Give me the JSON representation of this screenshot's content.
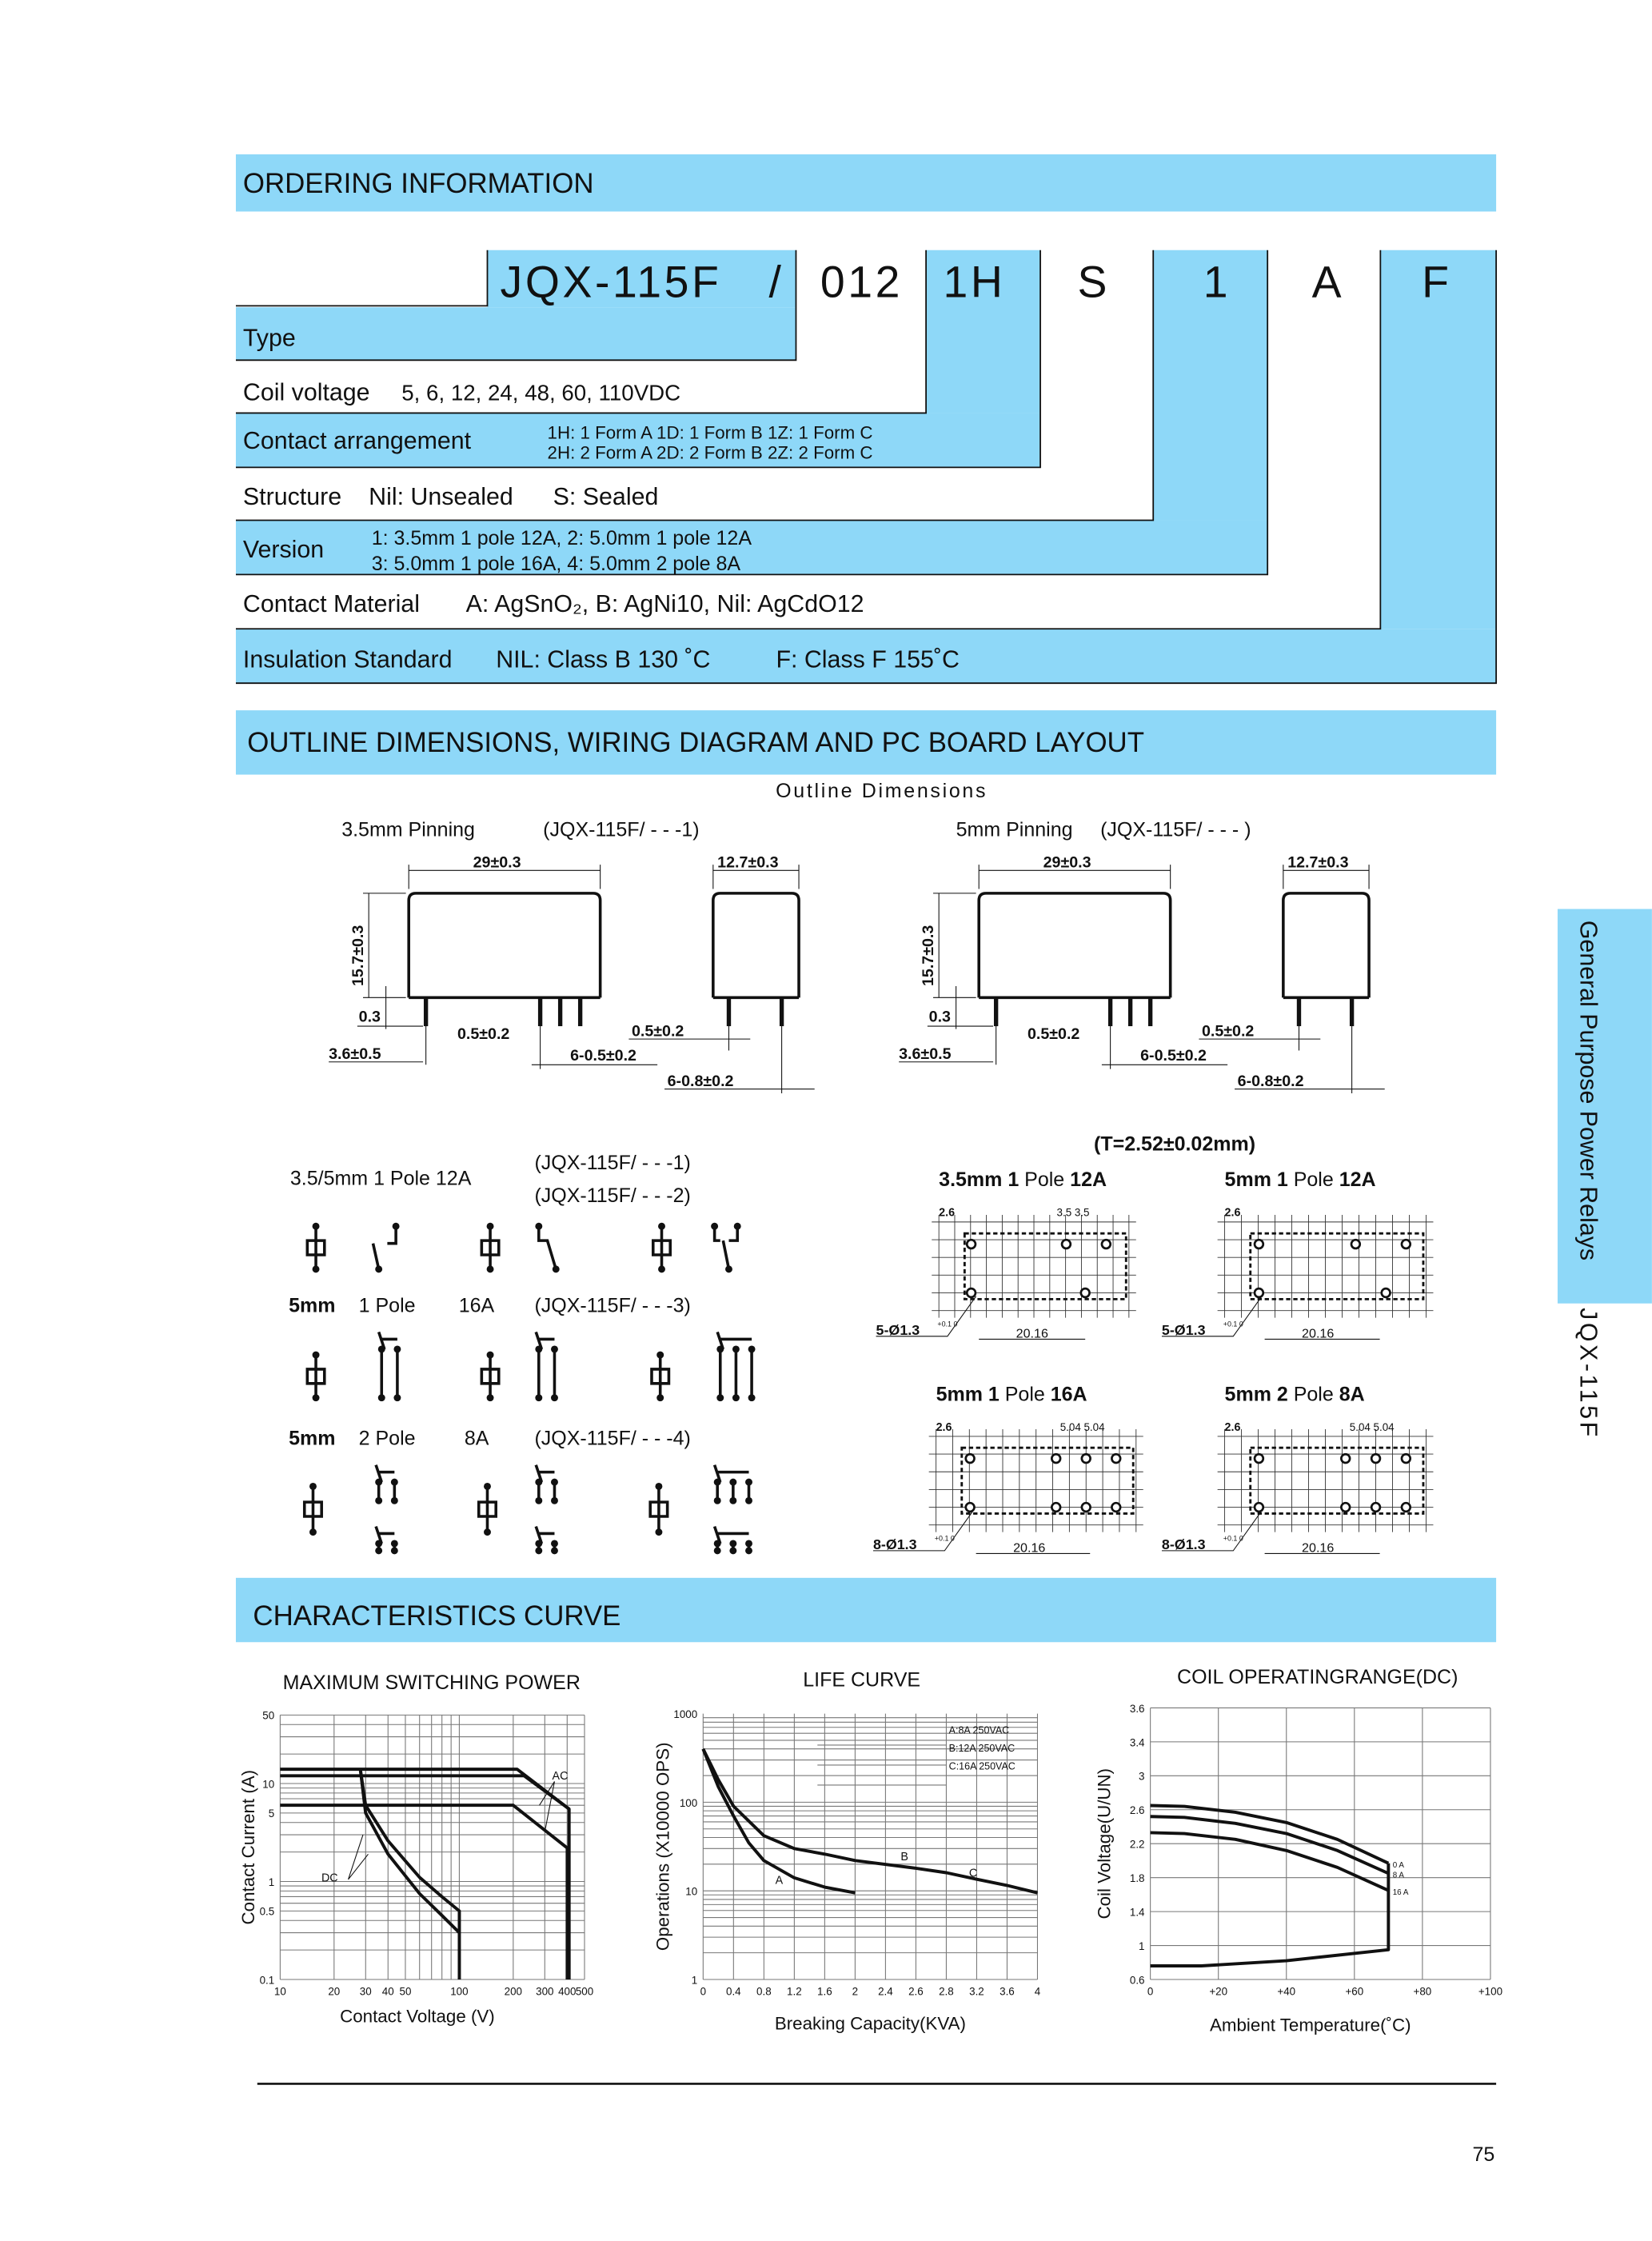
{
  "colors": {
    "accent_blue": "#8ed8f8",
    "text": "#111111"
  },
  "ordering": {
    "header": "ORDERING INFORMATION",
    "code": {
      "type": "JQX-115F",
      "slash": "/",
      "coil": "012",
      "contact": "1H",
      "structure": "S",
      "version": "1",
      "material": "A",
      "insulation": "F"
    },
    "rows": {
      "type": "Type",
      "coil_label": "Coil voltage",
      "coil_values": "5, 6, 12, 24, 48, 60, 110VDC",
      "contact_label": "Contact arrangement",
      "contact_line1": "1H: 1 Form A  1D: 1 Form B  1Z: 1 Form C",
      "contact_line2": "2H: 2 Form A  2D: 2 Form B  2Z: 2 Form C",
      "structure_label": "Structure",
      "structure_nil": "Nil: Unsealed",
      "structure_s": "S: Sealed",
      "version_label": "Version",
      "version_line1": "1: 3.5mm 1 pole 12A,  2: 5.0mm 1 pole  12A",
      "version_line2": "3: 5.0mm 1 pole  16A,  4: 5.0mm  2 pole  8A",
      "material_label": "Contact Material",
      "material_values": "A: AgSnO₂,  B: AgNi10,  Nil:  AgCdO12",
      "insulation_label": "Insulation Standard",
      "insulation_nil": "NIL:  Class B 130  ˚C",
      "insulation_f": "F:  Class F 155˚C"
    }
  },
  "outline": {
    "header": "OUTLINE DIMENSIONS, WIRING DIAGRAM AND PC BOARD LAYOUT",
    "subtitle": "Outline Dimensions",
    "left_title": "3.5mm  Pinning",
    "left_code": "(JQX-115F/   - - -1)",
    "right_title": "5mm Pinning",
    "right_code": "(JQX-115F/   - - - )",
    "dims": {
      "width": "29±0.3",
      "depth": "12.7±0.3",
      "height": "15.7±0.3",
      "standoff": "0.3",
      "pin_w": "0.5±0.2",
      "pin_len": "3.6±0.5",
      "pin6": "6-0.5±0.2",
      "pin_side": "0.5±0.2",
      "pin8": "6-0.8±0.2"
    }
  },
  "wiring": {
    "row1": {
      "label": "3.5/5mm  1 Pole  12A",
      "code1": "(JQX-115F/    - - -1)",
      "code2": "(JQX-115F/    - - -2)"
    },
    "row2": {
      "size": "5mm",
      "pole": "1 Pole",
      "amps": "16A",
      "code": "(JQX-115F/    - - -3)"
    },
    "row3": {
      "size": "5mm",
      "pole": "2 Pole",
      "amps": "8A",
      "code": "(JQX-115F/    - - -4)"
    }
  },
  "pcb": {
    "thickness": "(T=2.52±0.02mm)",
    "layouts": [
      {
        "title_a": "3.5mm 1",
        "title_b": "Pole",
        "title_c": "12A",
        "holes": "5-Ø1.3",
        "span": "20.16",
        "edge": "2.6",
        "pitch": "3.5 3.5"
      },
      {
        "title_a": "5mm 1",
        "title_b": "Pole",
        "title_c": "12A",
        "holes": "5-Ø1.3",
        "span": "20.16",
        "edge": "2.6",
        "pitch": ""
      },
      {
        "title_a": "5mm 1",
        "title_b": "Pole",
        "title_c": "16A",
        "holes": "8-Ø1.3",
        "span": "20.16",
        "edge": "2.6",
        "pitch": "5.04 5.04"
      },
      {
        "title_a": "5mm 2",
        "title_b": "Pole",
        "title_c": "8A",
        "holes": "8-Ø1.3",
        "span": "20.16",
        "edge": "2.6",
        "pitch": "5.04 5.04"
      }
    ],
    "tol": "+0.1 0"
  },
  "characteristics": {
    "header": "CHARACTERISTICS  CURVE"
  },
  "chart_data": [
    {
      "type": "line",
      "title": "MAXIMUM SWITCHING POWER",
      "xlabel": "Contact Voltage (V)",
      "ylabel": "Contact Current (A)",
      "xscale": "log",
      "yscale": "log",
      "xlim": [
        10,
        500
      ],
      "ylim": [
        0.1,
        50
      ],
      "xticks": [
        10,
        20,
        30,
        40,
        50,
        100,
        200,
        300,
        400,
        500
      ],
      "yticks": [
        0.1,
        0.5,
        1,
        5,
        10,
        50
      ],
      "grid": true,
      "series": [
        {
          "values": [
            [
              10,
              14
            ],
            [
              210,
              14
            ],
            [
              410,
              5.5
            ],
            [
              410,
              0.1
            ]
          ]
        },
        {
          "values": [
            [
              10,
              12
            ],
            [
              230,
              12
            ],
            [
              410,
              5.5
            ]
          ]
        },
        {
          "values": [
            [
              10,
              6
            ],
            [
              200,
              6
            ],
            [
              400,
              2.2
            ],
            [
              400,
              0.1
            ]
          ]
        },
        {
          "values": [
            [
              28,
              14
            ],
            [
              30,
              6
            ],
            [
              40,
              2.6
            ],
            [
              60,
              1.1
            ],
            [
              80,
              0.7
            ],
            [
              100,
              0.5
            ],
            [
              100,
              0.1
            ]
          ]
        },
        {
          "values": [
            [
              28,
              14
            ],
            [
              30,
              5
            ],
            [
              40,
              1.9
            ],
            [
              60,
              0.75
            ],
            [
              80,
              0.45
            ],
            [
              100,
              0.3
            ]
          ]
        }
      ],
      "annotations": [
        {
          "text": "AC",
          "x": 330,
          "y": 11
        },
        {
          "text": "DC",
          "x": 17,
          "y": 1
        }
      ]
    },
    {
      "type": "line",
      "title": "LIFE CURVE",
      "xlabel": "Breaking Capacity(KVA)",
      "ylabel": "Operations (X10000 OPS)",
      "yscale": "log",
      "ylim": [
        1,
        1000
      ],
      "xticks": [
        0,
        0.4,
        0.8,
        1.2,
        1.6,
        2.0,
        2.4,
        2.6,
        2.8,
        3.2,
        3.6,
        4.0
      ],
      "yticks": [
        1,
        10,
        100,
        1000
      ],
      "grid": true,
      "legend": [
        "A:8A 250VAC",
        "B:12A 250VAC",
        "C:16A 250VAC"
      ],
      "legend_position": "top-right",
      "series": [
        {
          "name": "A",
          "values": [
            [
              0,
              400
            ],
            [
              0.2,
              150
            ],
            [
              0.4,
              70
            ],
            [
              0.6,
              35
            ],
            [
              0.8,
              22
            ],
            [
              1.2,
              14
            ],
            [
              1.6,
              11
            ],
            [
              2.0,
              9.5
            ]
          ]
        },
        {
          "name": "B",
          "values": [
            [
              0,
              400
            ],
            [
              0.2,
              180
            ],
            [
              0.4,
              90
            ],
            [
              0.8,
              42
            ],
            [
              1.2,
              30
            ],
            [
              1.6,
              26
            ],
            [
              2.0,
              22
            ],
            [
              2.6,
              18
            ],
            [
              2.8,
              16
            ],
            [
              3.2,
              13.5
            ],
            [
              3.6,
              11.5
            ],
            [
              4.0,
              9.5
            ]
          ]
        }
      ],
      "annotations": [
        {
          "text": "A",
          "x": 0.95,
          "y": 12
        },
        {
          "text": "B",
          "x": 2.5,
          "y": 22
        },
        {
          "text": "C",
          "x": 3.1,
          "y": 14.5
        }
      ]
    },
    {
      "type": "line",
      "title": "COIL OPERATINGRANGE(DC)",
      "xlabel": "Ambient Temperature(˚C)",
      "ylabel": "Coil Voltage(U/UN)",
      "xlim": [
        0,
        100
      ],
      "ylim": [
        0.6,
        3.6
      ],
      "xticks": [
        "0",
        "+20",
        "+40",
        "+60",
        "+80",
        "+100"
      ],
      "xtick_values": [
        0,
        20,
        40,
        60,
        80,
        100
      ],
      "yticks": [
        0.6,
        1.0,
        1.4,
        1.8,
        2.2,
        2.6,
        3.0,
        3.4,
        3.6
      ],
      "grid": true,
      "series": [
        {
          "name": "0 A",
          "values": [
            [
              0,
              2.65
            ],
            [
              10,
              2.64
            ],
            [
              25,
              2.57
            ],
            [
              40,
              2.45
            ],
            [
              55,
              2.25
            ],
            [
              70,
              1.97
            ]
          ]
        },
        {
          "name": "8 A",
          "values": [
            [
              0,
              2.52
            ],
            [
              10,
              2.51
            ],
            [
              25,
              2.44
            ],
            [
              40,
              2.32
            ],
            [
              55,
              2.12
            ],
            [
              70,
              1.85
            ]
          ]
        },
        {
          "name": "16 A",
          "values": [
            [
              0,
              2.33
            ],
            [
              10,
              2.32
            ],
            [
              25,
              2.25
            ],
            [
              40,
              2.12
            ],
            [
              55,
              1.92
            ],
            [
              70,
              1.65
            ]
          ]
        },
        {
          "values": [
            [
              0,
              0.76
            ],
            [
              15,
              0.76
            ],
            [
              40,
              0.82
            ],
            [
              70,
              0.95
            ],
            [
              70,
              1.97
            ]
          ]
        }
      ]
    }
  ],
  "side_tab": {
    "label": "General Purpose Power Relays",
    "model": "JQX-115F"
  },
  "page_number": "75"
}
